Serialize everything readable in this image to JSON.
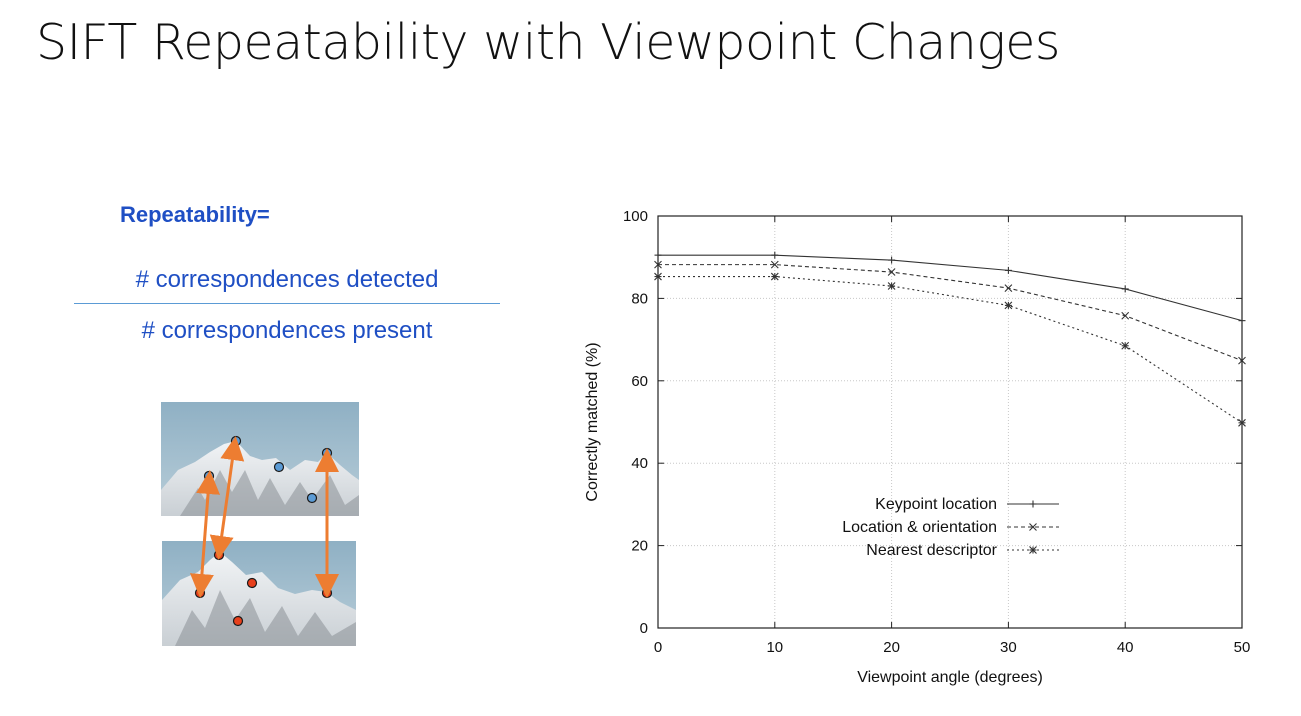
{
  "slide": {
    "title": "SIFT Repeatability with Viewpoint Changes",
    "formula": {
      "label": "Repeatability=",
      "numerator": "# correspondences detected",
      "denominator": "# correspondences present",
      "text_color": "#1f4fc4",
      "line_color": "#5b9bd5"
    },
    "illustration": {
      "top_points_color": "#5b9bd5",
      "bottom_points_color": "#e8401c",
      "arrow_color": "#ed7d31"
    }
  },
  "chart_data": {
    "type": "line",
    "title": "",
    "xlabel": "Viewpoint angle (degrees)",
    "ylabel": "Correctly matched (%)",
    "xlim": [
      0,
      50
    ],
    "ylim": [
      0,
      100
    ],
    "xticks": [
      0,
      10,
      20,
      30,
      40,
      50
    ],
    "yticks": [
      0,
      20,
      40,
      60,
      80,
      100
    ],
    "grid": true,
    "legend_position": "bottom-center",
    "x": [
      0,
      10,
      20,
      30,
      40,
      50
    ],
    "series": [
      {
        "name": "Keypoint location",
        "values": [
          90.5,
          90.5,
          89.3,
          86.8,
          82.3,
          74.6
        ],
        "dash": "solid",
        "marker": "+"
      },
      {
        "name": "Location & orientation",
        "values": [
          88.2,
          88.2,
          86.4,
          82.5,
          75.8,
          64.9
        ],
        "dash": "dashed",
        "marker": "x"
      },
      {
        "name": "Nearest descriptor",
        "values": [
          85.3,
          85.3,
          83.0,
          78.3,
          68.5,
          49.8
        ],
        "dash": "dotted",
        "marker": "*"
      }
    ]
  }
}
